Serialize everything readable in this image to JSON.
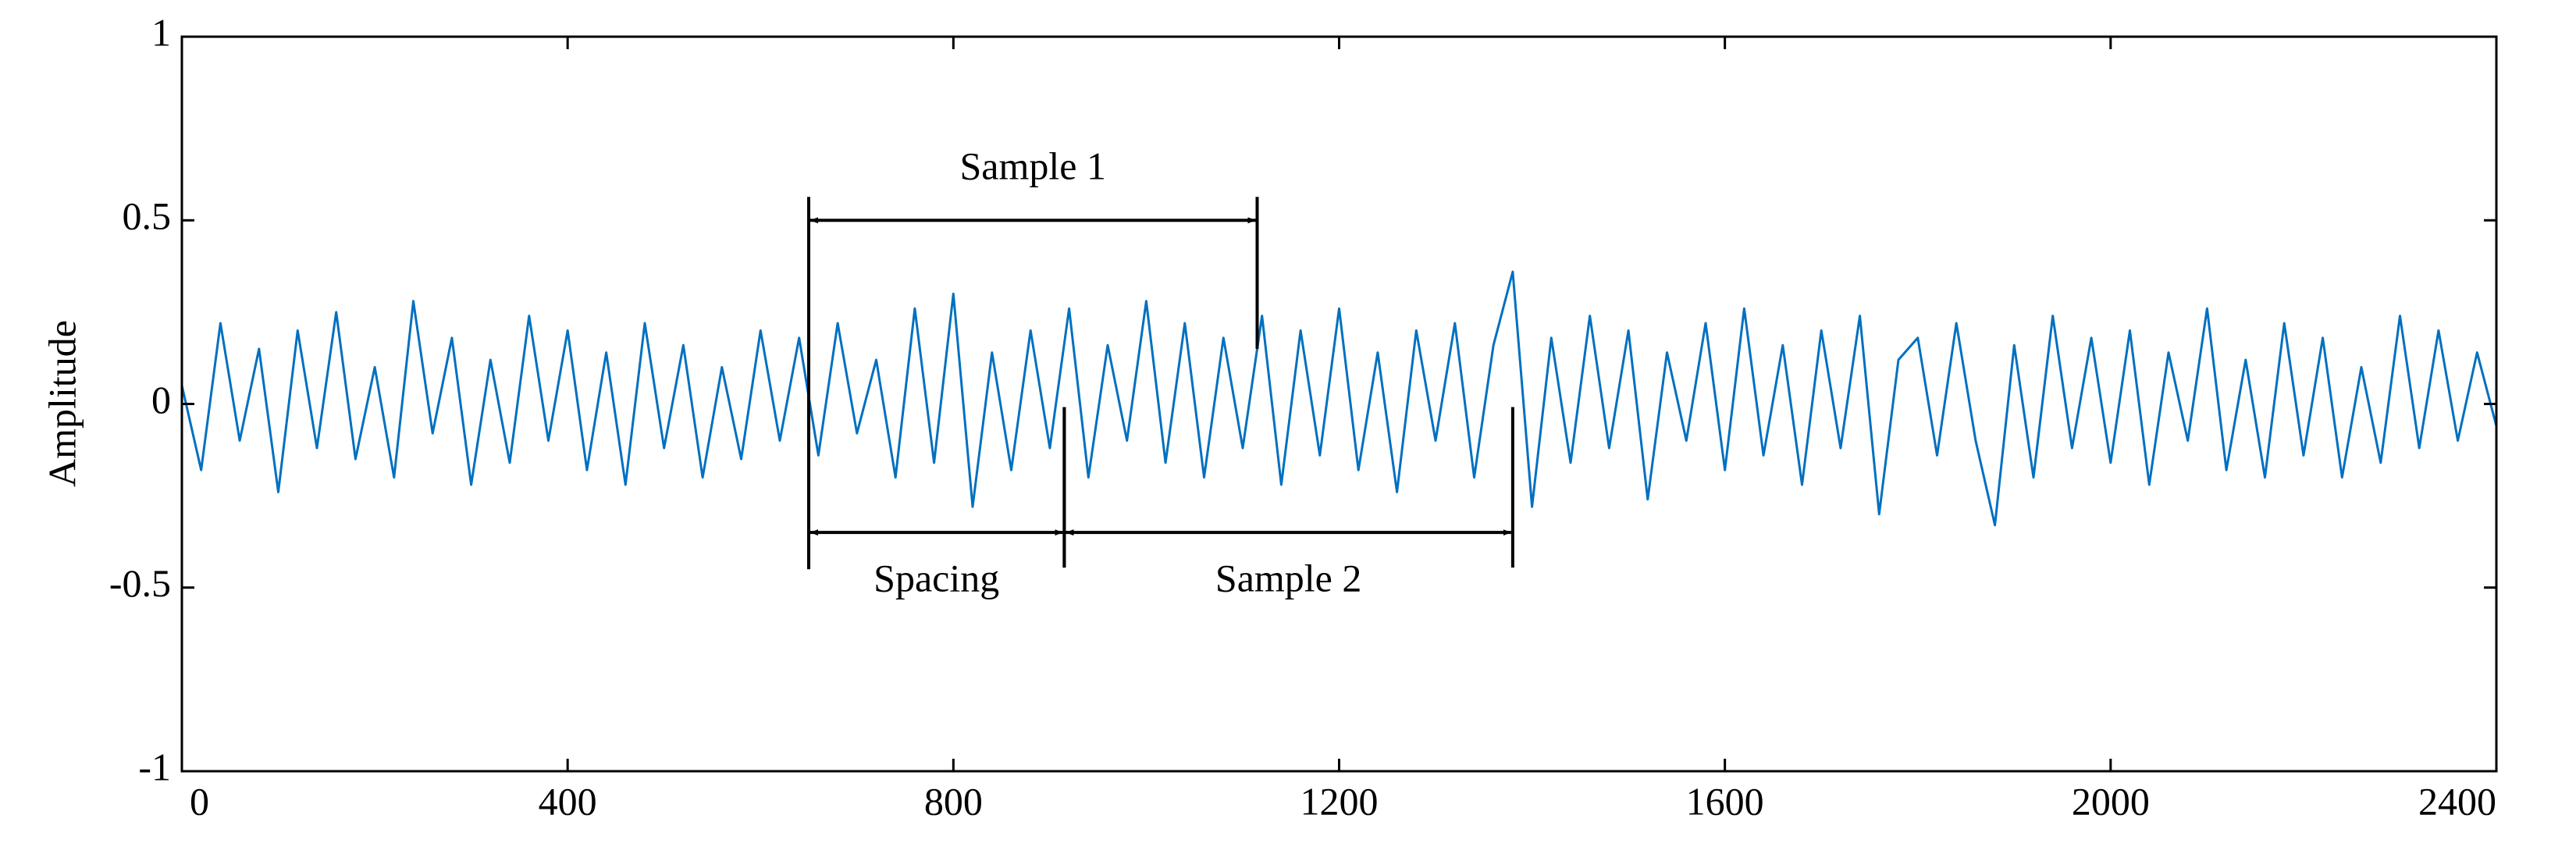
{
  "chart_data": {
    "type": "line",
    "y_label": "Amplitude",
    "x": [
      0,
      20,
      40,
      60,
      80,
      100,
      120,
      140,
      160,
      180,
      200,
      220,
      240,
      260,
      280,
      300,
      320,
      340,
      360,
      380,
      400,
      420,
      440,
      460,
      480,
      500,
      520,
      540,
      560,
      580,
      600,
      620,
      640,
      660,
      680,
      700,
      720,
      740,
      760,
      780,
      800,
      820,
      840,
      860,
      880,
      900,
      920,
      940,
      960,
      980,
      1000,
      1020,
      1040,
      1060,
      1080,
      1100,
      1120,
      1140,
      1160,
      1180,
      1200,
      1220,
      1240,
      1260,
      1280,
      1300,
      1320,
      1340,
      1360,
      1380,
      1400,
      1420,
      1440,
      1460,
      1480,
      1500,
      1520,
      1540,
      1560,
      1580,
      1600,
      1620,
      1640,
      1660,
      1680,
      1700,
      1720,
      1740,
      1760,
      1780,
      1800,
      1820,
      1840,
      1860,
      1880,
      1900,
      1920,
      1940,
      1960,
      1980,
      2000,
      2020,
      2040,
      2060,
      2080,
      2100,
      2120,
      2140,
      2160,
      2180,
      2200,
      2220,
      2240,
      2260,
      2280,
      2300,
      2320,
      2340,
      2360,
      2380,
      2400
    ],
    "series": [
      {
        "color": "#0070c0",
        "values": [
          0.05,
          -0.18,
          0.22,
          -0.1,
          0.15,
          -0.24,
          0.2,
          -0.12,
          0.25,
          -0.15,
          0.1,
          -0.2,
          0.28,
          -0.08,
          0.18,
          -0.22,
          0.12,
          -0.16,
          0.24,
          -0.1,
          0.2,
          -0.18,
          0.14,
          -0.22,
          0.22,
          -0.12,
          0.16,
          -0.2,
          0.1,
          -0.15,
          0.2,
          -0.1,
          0.18,
          -0.14,
          0.22,
          -0.08,
          0.12,
          -0.2,
          0.26,
          -0.16,
          0.3,
          -0.28,
          0.14,
          -0.18,
          0.2,
          -0.12,
          0.26,
          -0.2,
          0.16,
          -0.1,
          0.28,
          -0.16,
          0.22,
          -0.2,
          0.18,
          -0.12,
          0.24,
          -0.22,
          0.2,
          -0.14,
          0.26,
          -0.18,
          0.14,
          -0.24,
          0.2,
          -0.1,
          0.22,
          -0.2,
          0.16,
          0.36,
          -0.28,
          0.18,
          -0.16,
          0.24,
          -0.12,
          0.2,
          -0.26,
          0.14,
          -0.1,
          0.22,
          -0.18,
          0.26,
          -0.14,
          0.16,
          -0.22,
          0.2,
          -0.12,
          0.24,
          -0.3,
          0.12,
          0.18,
          -0.14,
          0.22,
          -0.1,
          -0.33,
          0.16,
          -0.2,
          0.24,
          -0.12,
          0.18,
          -0.16,
          0.2,
          -0.22,
          0.14,
          -0.1,
          0.26,
          -0.18,
          0.12,
          -0.2,
          0.22,
          -0.14,
          0.18,
          -0.2,
          0.1,
          -0.16,
          0.24,
          -0.12,
          0.2,
          -0.1,
          0.14,
          -0.06
        ]
      }
    ],
    "xlim": [
      0,
      2400
    ],
    "xticks": [
      0,
      400,
      800,
      1200,
      1600,
      2000,
      2400
    ],
    "ylim": [
      -1,
      1
    ],
    "yticks": [
      -1,
      -0.5,
      0,
      0.5,
      1
    ],
    "annotations": [
      {
        "text": "Sample 1",
        "x": [
          650,
          1115
        ],
        "y": 0.5
      },
      {
        "text": "Spacing",
        "x": [
          650,
          915
        ],
        "y": -0.35
      },
      {
        "text": "Sample 2",
        "x": [
          915,
          1380
        ],
        "y": -0.35
      }
    ]
  }
}
